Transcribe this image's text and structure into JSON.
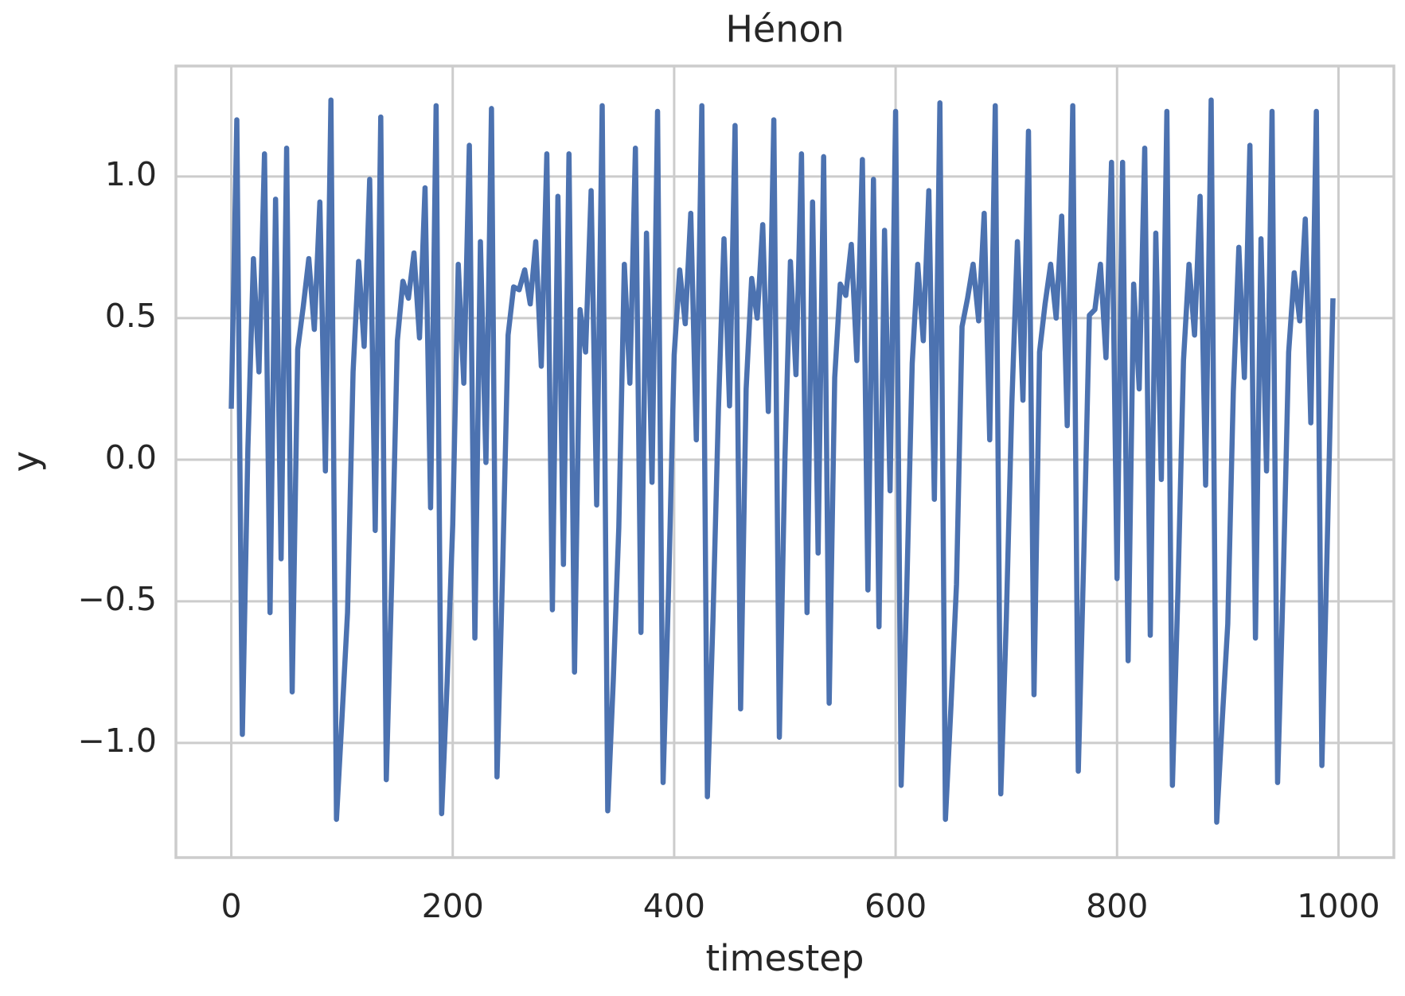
{
  "chart_data": {
    "type": "line",
    "title": "Hénon",
    "xlabel": "timestep",
    "ylabel": "y",
    "x": [
      0,
      5,
      10,
      15,
      20,
      25,
      30,
      35,
      40,
      45,
      50,
      55,
      60,
      65,
      70,
      75,
      80,
      85,
      90,
      95,
      100,
      105,
      110,
      115,
      120,
      125,
      130,
      135,
      140,
      145,
      150,
      155,
      160,
      165,
      170,
      175,
      180,
      185,
      190,
      195,
      200,
      205,
      210,
      215,
      220,
      225,
      230,
      235,
      240,
      245,
      250,
      255,
      260,
      265,
      270,
      275,
      280,
      285,
      290,
      295,
      300,
      305,
      310,
      315,
      320,
      325,
      330,
      335,
      340,
      345,
      350,
      355,
      360,
      365,
      370,
      375,
      380,
      385,
      390,
      395,
      400,
      405,
      410,
      415,
      420,
      425,
      430,
      435,
      440,
      445,
      450,
      455,
      460,
      465,
      470,
      475,
      480,
      485,
      490,
      495,
      500,
      505,
      510,
      515,
      520,
      525,
      530,
      535,
      540,
      545,
      550,
      555,
      560,
      565,
      570,
      575,
      580,
      585,
      590,
      595,
      600,
      605,
      610,
      615,
      620,
      625,
      630,
      635,
      640,
      645,
      650,
      655,
      660,
      665,
      670,
      675,
      680,
      685,
      690,
      695,
      700,
      705,
      710,
      715,
      720,
      725,
      730,
      735,
      740,
      745,
      750,
      755,
      760,
      765,
      770,
      775,
      780,
      785,
      790,
      795,
      800,
      805,
      810,
      815,
      820,
      825,
      830,
      835,
      840,
      845,
      850,
      855,
      860,
      865,
      870,
      875,
      880,
      885,
      890,
      895,
      900,
      905,
      910,
      915,
      920,
      925,
      930,
      935,
      940,
      945,
      950,
      955,
      960,
      965,
      970,
      975,
      980,
      985,
      990,
      995
    ],
    "series": [
      {
        "name": "y",
        "color": "#4c72b0",
        "values": [
          0.18,
          1.2,
          -0.97,
          0.04,
          0.71,
          0.31,
          1.08,
          -0.54,
          0.92,
          -0.35,
          1.1,
          -0.82,
          0.39,
          0.54,
          0.71,
          0.46,
          0.91,
          -0.04,
          1.27,
          -1.27,
          -0.91,
          -0.54,
          0.31,
          0.7,
          0.4,
          0.99,
          -0.25,
          1.21,
          -1.13,
          -0.41,
          0.42,
          0.63,
          0.57,
          0.73,
          0.43,
          0.96,
          -0.17,
          1.25,
          -1.25,
          -0.78,
          -0.23,
          0.69,
          0.27,
          1.11,
          -0.63,
          0.77,
          -0.01,
          1.24,
          -1.12,
          -0.4,
          0.44,
          0.61,
          0.6,
          0.67,
          0.55,
          0.77,
          0.33,
          1.08,
          -0.53,
          0.93,
          -0.37,
          1.08,
          -0.75,
          0.53,
          0.38,
          0.95,
          -0.16,
          1.25,
          -1.24,
          -0.78,
          -0.24,
          0.69,
          0.27,
          1.1,
          -0.61,
          0.8,
          -0.08,
          1.23,
          -1.14,
          -0.45,
          0.37,
          0.67,
          0.48,
          0.87,
          0.07,
          1.25,
          -1.19,
          -0.57,
          0.18,
          0.78,
          0.19,
          1.18,
          -0.88,
          0.25,
          0.64,
          0.5,
          0.83,
          0.17,
          1.2,
          -0.98,
          0.0,
          0.7,
          0.3,
          1.08,
          -0.54,
          0.91,
          -0.33,
          1.07,
          -0.86,
          0.29,
          0.62,
          0.58,
          0.76,
          0.35,
          1.06,
          -0.46,
          0.99,
          -0.59,
          0.81,
          -0.11,
          1.23,
          -1.15,
          -0.47,
          0.34,
          0.69,
          0.42,
          0.95,
          -0.14,
          1.26,
          -1.27,
          -0.87,
          -0.44,
          0.47,
          0.57,
          0.69,
          0.49,
          0.87,
          0.07,
          1.25,
          -1.18,
          -0.56,
          0.2,
          0.77,
          0.21,
          1.16,
          -0.83,
          0.38,
          0.55,
          0.69,
          0.5,
          0.86,
          0.12,
          1.25,
          -1.1,
          -0.33,
          0.51,
          0.53,
          0.69,
          0.36,
          1.05,
          -0.42,
          1.05,
          -0.71,
          0.62,
          0.25,
          1.1,
          -0.62,
          0.8,
          -0.07,
          1.23,
          -1.15,
          -0.46,
          0.35,
          0.69,
          0.44,
          0.93,
          -0.09,
          1.27,
          -1.28,
          -0.92,
          -0.58,
          0.24,
          0.75,
          0.29,
          1.11,
          -0.63,
          0.78,
          -0.04,
          1.23,
          -1.14,
          -0.44,
          0.38,
          0.66,
          0.49,
          0.85,
          0.13,
          1.23,
          -1.08,
          -0.27,
          0.57
        ]
      }
    ],
    "xlim": [
      -50,
      1050
    ],
    "xticks": [
      0,
      200,
      400,
      600,
      800,
      1000
    ],
    "ylim": [
      -1.405,
      1.39
    ],
    "yticks": [
      {
        "value": -1,
        "label": "−1.0"
      },
      {
        "value": -0.5,
        "label": "−0.5"
      },
      {
        "value": 0,
        "label": "0.0"
      },
      0.5,
      {
        "value": 1,
        "label": "1.0"
      }
    ],
    "grid": true
  }
}
